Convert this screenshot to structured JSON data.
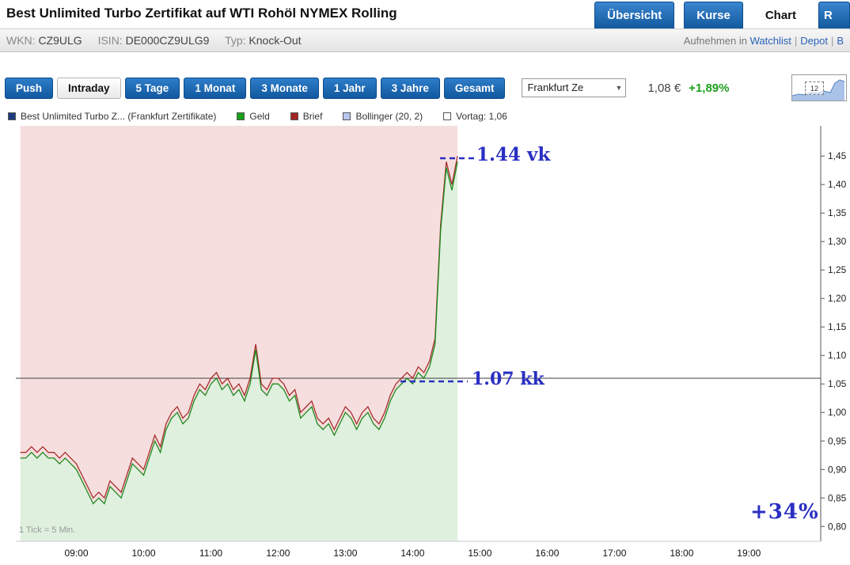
{
  "colors": {
    "chart_pink": "#f6dede",
    "chart_green": "#dff0df",
    "annotation": "#2a2fc2",
    "positive": "#1fa01f"
  },
  "header": {
    "title": "Best Unlimited Turbo Zertifikat auf WTI Rohöl NYMEX Rolling",
    "nav_tabs": [
      {
        "label": "Übersicht"
      },
      {
        "label": "Kurse"
      },
      {
        "label": "Chart"
      },
      {
        "label": "R"
      }
    ]
  },
  "info_bar": {
    "wkn_label": "WKN:",
    "wkn": "CZ9ULG",
    "isin_label": "ISIN:",
    "isin": "DE000CZ9ULG9",
    "typ_label": "Typ:",
    "typ": "Knock-Out",
    "watchlist_prefix": "Aufnehmen in",
    "link_watchlist": "Watchlist",
    "link_depot": "Depot",
    "link_clipped": "B"
  },
  "toolbar": {
    "periods": [
      {
        "label": "Push"
      },
      {
        "label": "Intraday"
      },
      {
        "label": "5 Tage"
      },
      {
        "label": "1 Monat"
      },
      {
        "label": "3 Monate"
      },
      {
        "label": "1 Jahr"
      },
      {
        "label": "3 Jahre"
      },
      {
        "label": "Gesamt"
      }
    ],
    "exchange_select": "Frankfurt Ze",
    "price": "1,08 €",
    "change": "+1,89%",
    "thumbnail_label": "12"
  },
  "legend": {
    "items": [
      {
        "label": "Best Unlimited Turbo Z... (Frankfurt Zertifikate)",
        "color": "#1b3c7e"
      },
      {
        "label": "Geld",
        "color": "#18a018"
      },
      {
        "label": "Brief",
        "color": "#a32424"
      },
      {
        "label": "Bollinger (20, 2)",
        "color": "#b9c6ee"
      },
      {
        "label": "Vortag: 1,06",
        "color": "#ffffff"
      }
    ]
  },
  "annotations": {
    "high_label": "1.44 vk",
    "entry_label": "1.07 kk",
    "gain_label": "+34%"
  },
  "chart_data": {
    "type": "line",
    "title": "Intraday Chart Best Unlimited Turbo Zertifikat auf WTI Rohöl NYMEX Rolling",
    "tick_note": "1 Tick = 5 Min.",
    "x_window": [
      "08:06",
      "20:04"
    ],
    "ylim": [
      0.774,
      1.503
    ],
    "vortag": 1.06,
    "y_ticks": [
      1.45,
      1.4,
      1.35,
      1.3,
      1.25,
      1.2,
      1.15,
      1.1,
      1.05,
      1.0,
      0.95,
      0.9,
      0.85,
      0.8
    ],
    "x_ticks": [
      "09:00",
      "10:00",
      "11:00",
      "12:00",
      "13:00",
      "14:00",
      "15:00",
      "16:00",
      "17:00",
      "18:00",
      "19:00"
    ],
    "times": [
      "08:10",
      "08:15",
      "08:20",
      "08:25",
      "08:30",
      "08:35",
      "08:40",
      "08:45",
      "08:50",
      "08:55",
      "09:00",
      "09:05",
      "09:10",
      "09:15",
      "09:20",
      "09:25",
      "09:30",
      "09:35",
      "09:40",
      "09:45",
      "09:50",
      "09:55",
      "10:00",
      "10:05",
      "10:10",
      "10:15",
      "10:20",
      "10:25",
      "10:30",
      "10:35",
      "10:40",
      "10:45",
      "10:50",
      "10:55",
      "11:00",
      "11:05",
      "11:10",
      "11:15",
      "11:20",
      "11:25",
      "11:30",
      "11:35",
      "11:40",
      "11:45",
      "11:50",
      "11:55",
      "12:00",
      "12:05",
      "12:10",
      "12:15",
      "12:20",
      "12:25",
      "12:30",
      "12:35",
      "12:40",
      "12:45",
      "12:50",
      "12:55",
      "13:00",
      "13:05",
      "13:10",
      "13:15",
      "13:20",
      "13:25",
      "13:30",
      "13:35",
      "13:40",
      "13:45",
      "13:50",
      "13:55",
      "14:00",
      "14:05",
      "14:10",
      "14:15",
      "14:20",
      "14:25",
      "14:30",
      "14:35",
      "14:40"
    ],
    "series": [
      {
        "name": "Geld",
        "color": "#1d8a1d",
        "values": [
          0.92,
          0.92,
          0.93,
          0.92,
          0.93,
          0.92,
          0.92,
          0.91,
          0.92,
          0.91,
          0.9,
          0.88,
          0.86,
          0.84,
          0.85,
          0.84,
          0.87,
          0.86,
          0.85,
          0.88,
          0.91,
          0.9,
          0.89,
          0.92,
          0.95,
          0.93,
          0.97,
          0.99,
          1.0,
          0.98,
          0.99,
          1.02,
          1.04,
          1.03,
          1.05,
          1.06,
          1.04,
          1.05,
          1.03,
          1.04,
          1.02,
          1.05,
          1.11,
          1.04,
          1.03,
          1.05,
          1.05,
          1.04,
          1.02,
          1.03,
          0.99,
          1.0,
          1.01,
          0.98,
          0.97,
          0.98,
          0.96,
          0.98,
          1.0,
          0.99,
          0.97,
          0.99,
          1.0,
          0.98,
          0.97,
          0.99,
          1.02,
          1.04,
          1.05,
          1.06,
          1.05,
          1.07,
          1.06,
          1.08,
          1.12,
          1.32,
          1.43,
          1.39,
          1.44
        ]
      },
      {
        "name": "Brief",
        "color": "#a62c2c",
        "values": [
          0.93,
          0.93,
          0.94,
          0.93,
          0.94,
          0.93,
          0.93,
          0.92,
          0.93,
          0.92,
          0.91,
          0.89,
          0.87,
          0.85,
          0.86,
          0.85,
          0.88,
          0.87,
          0.86,
          0.89,
          0.92,
          0.91,
          0.9,
          0.93,
          0.96,
          0.94,
          0.98,
          1.0,
          1.01,
          0.99,
          1.0,
          1.03,
          1.05,
          1.04,
          1.06,
          1.07,
          1.05,
          1.06,
          1.04,
          1.05,
          1.03,
          1.06,
          1.12,
          1.05,
          1.04,
          1.06,
          1.06,
          1.05,
          1.03,
          1.04,
          1.0,
          1.01,
          1.02,
          0.99,
          0.98,
          0.99,
          0.97,
          0.99,
          1.01,
          1.0,
          0.98,
          1.0,
          1.01,
          0.99,
          0.98,
          1.0,
          1.03,
          1.05,
          1.06,
          1.07,
          1.06,
          1.08,
          1.07,
          1.09,
          1.13,
          1.33,
          1.44,
          1.4,
          1.45
        ]
      }
    ]
  }
}
